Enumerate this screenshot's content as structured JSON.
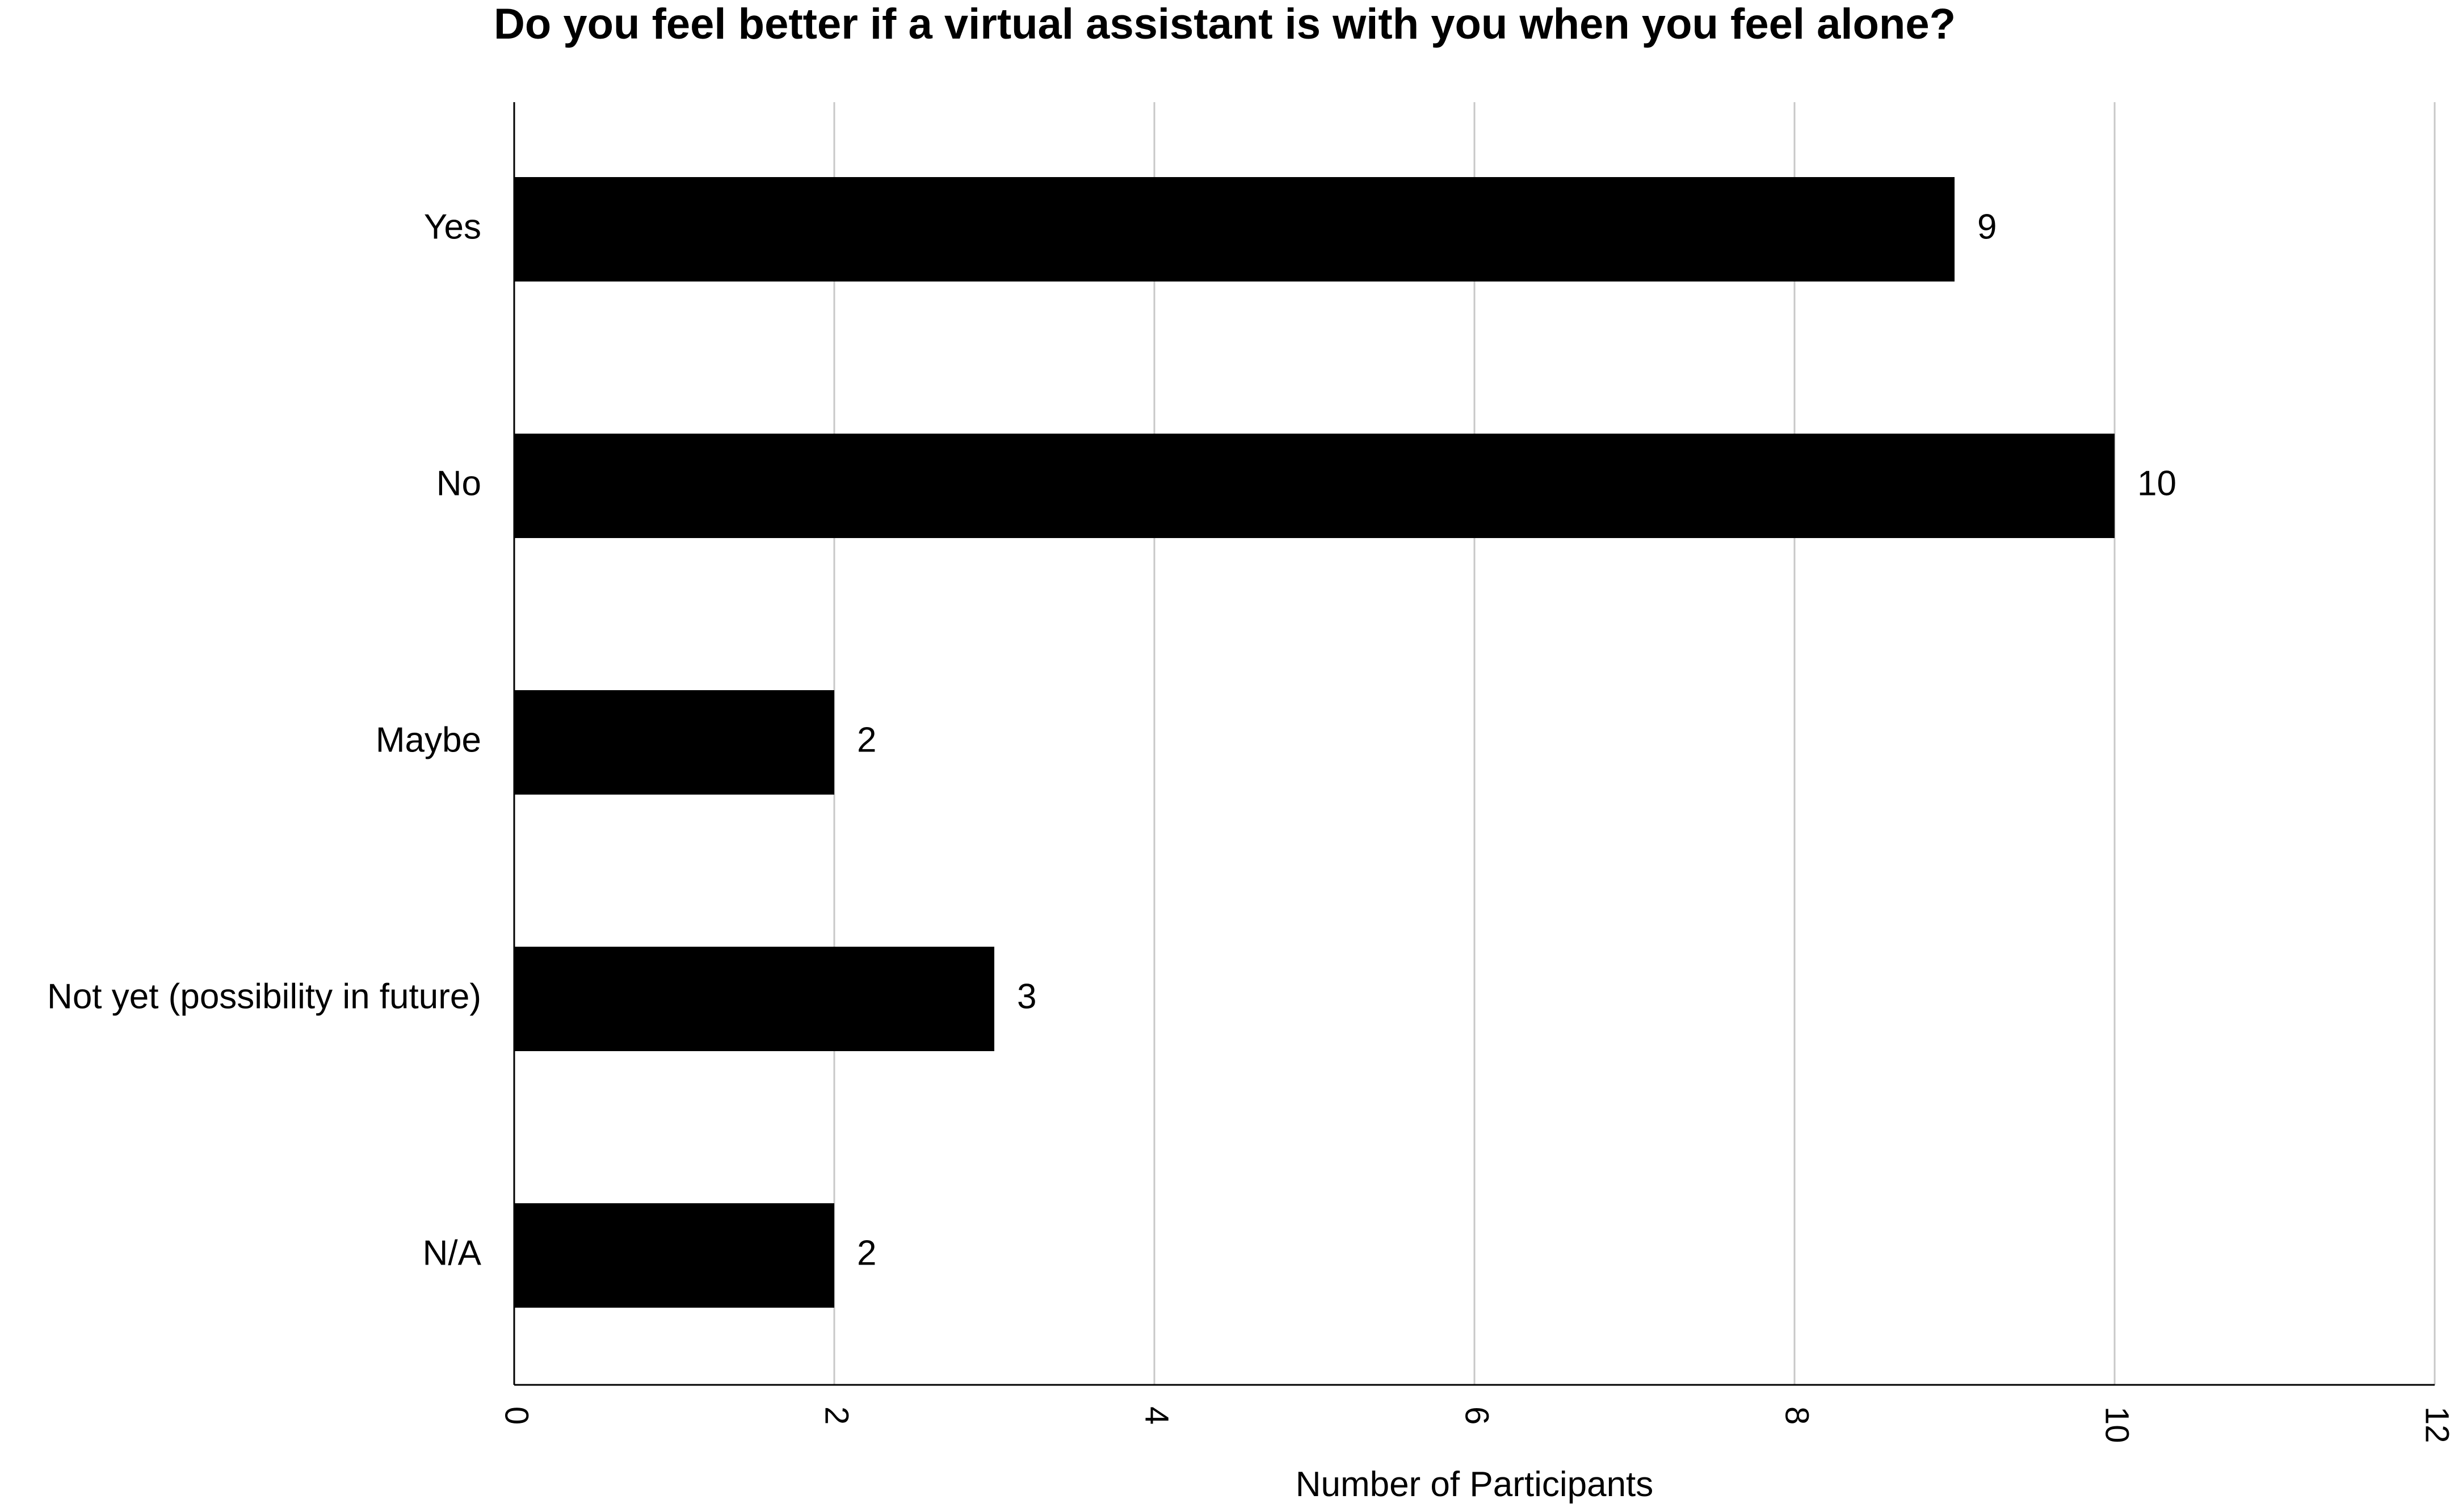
{
  "chart_data": {
    "type": "bar",
    "orientation": "horizontal",
    "title": "Do you feel better if a virtual assistant is with you when you feel alone?",
    "xlabel": "Number of Participants",
    "ylabel": "",
    "categories": [
      "Yes",
      "No",
      "Maybe",
      "Not yet (possibility in future)",
      "N/A"
    ],
    "values": [
      9,
      10,
      2,
      3,
      2
    ],
    "data_labels": [
      "9",
      "10",
      "2",
      "3",
      "2"
    ],
    "xlim": [
      0,
      12
    ],
    "x_ticks": [
      0,
      2,
      4,
      6,
      8,
      10,
      12
    ],
    "x_tick_labels": [
      "0",
      "2",
      "4",
      "6",
      "8",
      "10",
      "12"
    ],
    "grid": true,
    "legend": "none",
    "bar_color": "#000000",
    "grid_color": "#c8c8c8",
    "axis_color": "#000000"
  }
}
